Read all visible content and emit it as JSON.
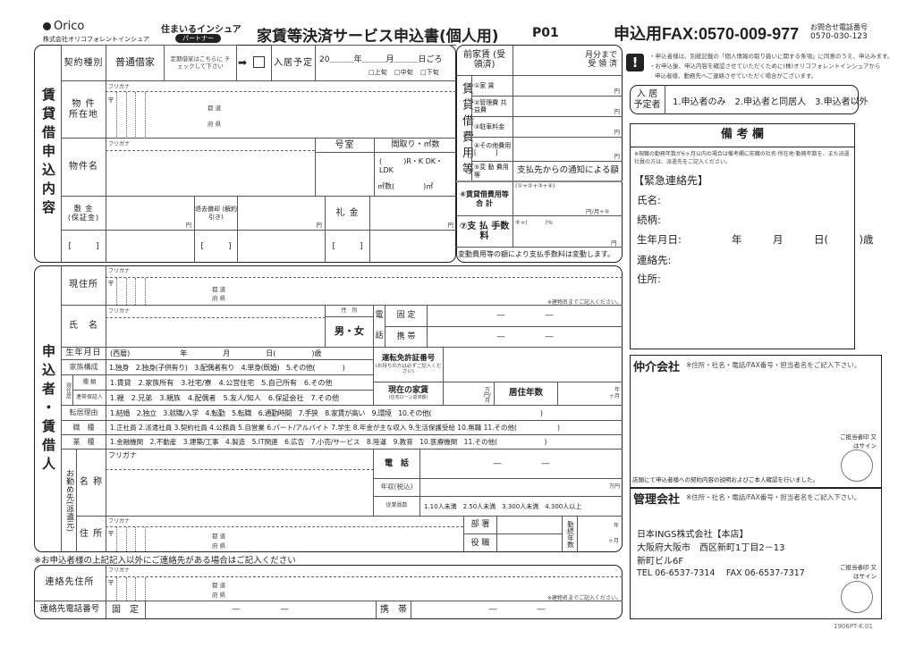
{
  "header": {
    "logo": "Orico",
    "company": "株式会社オリコフォレントインシュア",
    "brand": "住まいるインシュア",
    "badge": "パートナー",
    "title": "家賃等決済サービス申込書(個人用)",
    "page_code": "P01",
    "fax": "申込用FAX:0570-009-977",
    "inquiry_label": "お問合せ電話番号",
    "inquiry_phone": "0570-030-123"
  },
  "notice": {
    "icon": "exclamation-icon",
    "line1": "・申込者様は、別紙記載の「個人情報の取り扱いに関する条項」に同意のうえ、申込みます。",
    "line2": "・お申込後、申込内容を確認させていただくために(株)オリコフォレントインシュアから",
    "line3": "申込者様、勤務先へご連絡させていただく場合がございます。"
  },
  "rental": {
    "section_label": "賃貸借申込内容",
    "contract_type_label": "契約種別",
    "contract_type_value": "普通借家",
    "fixed_term_note": "定期借家はこちらに チェックして下さい",
    "arrow": "➡",
    "move_in_label": "入居予定",
    "move_in_date": "20＿＿＿年＿＿＿月＿＿＿日ごろ",
    "period_early": "□上旬",
    "period_mid": "□中旬",
    "period_late": "□下旬",
    "furigana": "フリガナ",
    "postal": "〒",
    "address_label": "物 件 所在地",
    "pref1": "都 道",
    "pref2": "府 県",
    "property_name_label": "物件名",
    "room_label": "号室",
    "layout_label": "間取り・㎡数",
    "layout_value": "(　　　)R・K DK・LDK",
    "area_value": "㎡数(　　　　)㎡",
    "deposit_label": "敷 金 (保証金)",
    "deduction_label": "退去償却 (解約引き)",
    "key_money_label": "礼 金",
    "yen": "円",
    "bracket": "[　　　]"
  },
  "costs": {
    "prepaid_label": "前家賃 (受領済)",
    "prepaid_value": "月分まで 受 領 済",
    "vertical_label": "賃貸借費用等",
    "items": [
      {
        "label": "①家 賃"
      },
      {
        "label": "②管理費 共益費"
      },
      {
        "label": "③駐車料金"
      },
      {
        "label": "④その他費用 [　　　]"
      },
      {
        "label": "⑤変 動 費用等"
      }
    ],
    "variable_value": "支払先からの通知による額",
    "total_label": "⑥賃貸借費用等 合 計",
    "total_formula": "(①+②+③+④)",
    "total_unit": "円/月+⑤",
    "fee_label": "⑦支 払 手数料",
    "fee_formula": "⑥×(　　　)%",
    "yen": "円",
    "note": "変動費用等の額により支払手数料は変動します。"
  },
  "residents": {
    "label": "入 居 予定者",
    "options": [
      "1.申込者のみ",
      "2.申込者と同居人",
      "3.申込者以外"
    ]
  },
  "remarks": {
    "title": "備 考 欄",
    "note": "※現職の勤務年数が6ヶ月以内の場合は備考欄に前職の社名·所在地·勤務年数を、また派遣社員の方は、派遣先をご記入ください。",
    "emergency_title": "【緊急連絡先】",
    "name": "氏名:",
    "relation": "続柄:",
    "birth": "生年月日:",
    "birth_value": "年　　　月　　　日(　　　)歳",
    "contact": "連絡先:",
    "address": "住所:"
  },
  "applicant": {
    "section_label": "申込者・賃借人",
    "furigana": "フリガナ",
    "postal": "〒",
    "pref1": "都 道",
    "pref2": "府 県",
    "current_address": "現住所",
    "building_note": "※建物名までご記入ください。",
    "name": "氏　名",
    "gender_label": "性　別",
    "gender_value": "男・女",
    "phone_char1": "電",
    "phone_char2": "話",
    "landline": "固 定",
    "mobile": "携 帯",
    "phone_blank": "―　　　　　―",
    "birth_label": "生年月日",
    "birth_value": "(西暦)　　　　　　　年　　　　　月　　　　　日(　　　　　)歳",
    "license_label": "運転免許証番号",
    "license_note": "(お持ちの方は必ずご記入ください)",
    "family_label": "家族構成",
    "family_opts": "1.独身　2.独身(子供有り)　3.配偶者有り　4.単身(既婚)　5.その他(　　　　)",
    "residence_label": "現住居",
    "type_label": "種 類",
    "type_opts": "1.賃貸　2.家族所有　3.社宅/寮　4.公営住宅　5.自己所有　6.その他",
    "guarantor_label": "連帯保証人",
    "guarantor_opts": "1.親　2.兄弟　3.親族　4.配偶者　5.友人/知人　6.保証会社　7.その他",
    "rent_label": "現在の家賃",
    "rent_note": "(住宅ローン返済額)",
    "rent_unit": "万円/月",
    "years_label": "居住年数",
    "unit_year": "年",
    "unit_month": "ヶ月",
    "move_label": "転居理由",
    "move_opts": "1.結婚　2.独立　3.就職/入学　4.転勤　5.転職　6.通勤時間　7.手狭　8.家賃が高い　9.環境　10.その他(　　　　　　　　　　　　　　　　)",
    "job_label": "職　種",
    "job_opts": "1.正社員 2.派遣社員 3.契約社員 4.公務員 5.自営業 6.パート/アルバイト 7.学生 8.年金が主な収入 9.生活保護受給 10.無職 11.その他(　　　　　　)",
    "industry_label": "業　種",
    "industry_opts": "1.金融機関　2.不動産　3.建築/工事　4.製造　5.IT関連　6.広告　7.小売/サービス　8.陸運　9.教育　10.医療機関　11.その他(　　　　　　　)",
    "employer_label": "お勤め先(派遣元)",
    "employer_name": "名 称",
    "employer_address": "住 所",
    "phone": "電　話",
    "income_label": "年収(税込)",
    "income_unit": "万円",
    "employees_label": "従業員数",
    "employees_opts": "1.10人未満　2.50人未満　3.300人未満　4.300人以上",
    "dept": "部 署",
    "position": "役 職",
    "tenure": "勤続年数"
  },
  "other_contact": {
    "note": "※お申込者様の上記記入以外にご連絡先がある場合はご記入ください",
    "address_label": "連絡先住所",
    "phone_label": "連絡先電話番号",
    "landline": "固　定",
    "mobile": "携　帯"
  },
  "broker": {
    "title": "仲介会社",
    "note": "※住所・社名・電話/FAX番号・担当者名をご記入下さい。",
    "stamp": "ご担当者印 又はサイン",
    "confirm": "店頭にて申込者様への契約内容の説明およびご本人確認を行いました。"
  },
  "manager": {
    "title": "管理会社",
    "note": "※住所・社名・電話/FAX番号・担当者名をご記入下さい。",
    "line1": "日本INGS株式会社【本店】",
    "line2": "大阪府大阪市　西区新町1丁目2－13",
    "line3": "新町ビル6F",
    "line4": "TEL 06-6537-7314　 FAX 06-6537-7317",
    "stamp": "ご担当者印 又はサイン"
  },
  "footer": {
    "code": "1906PT-K.01"
  }
}
